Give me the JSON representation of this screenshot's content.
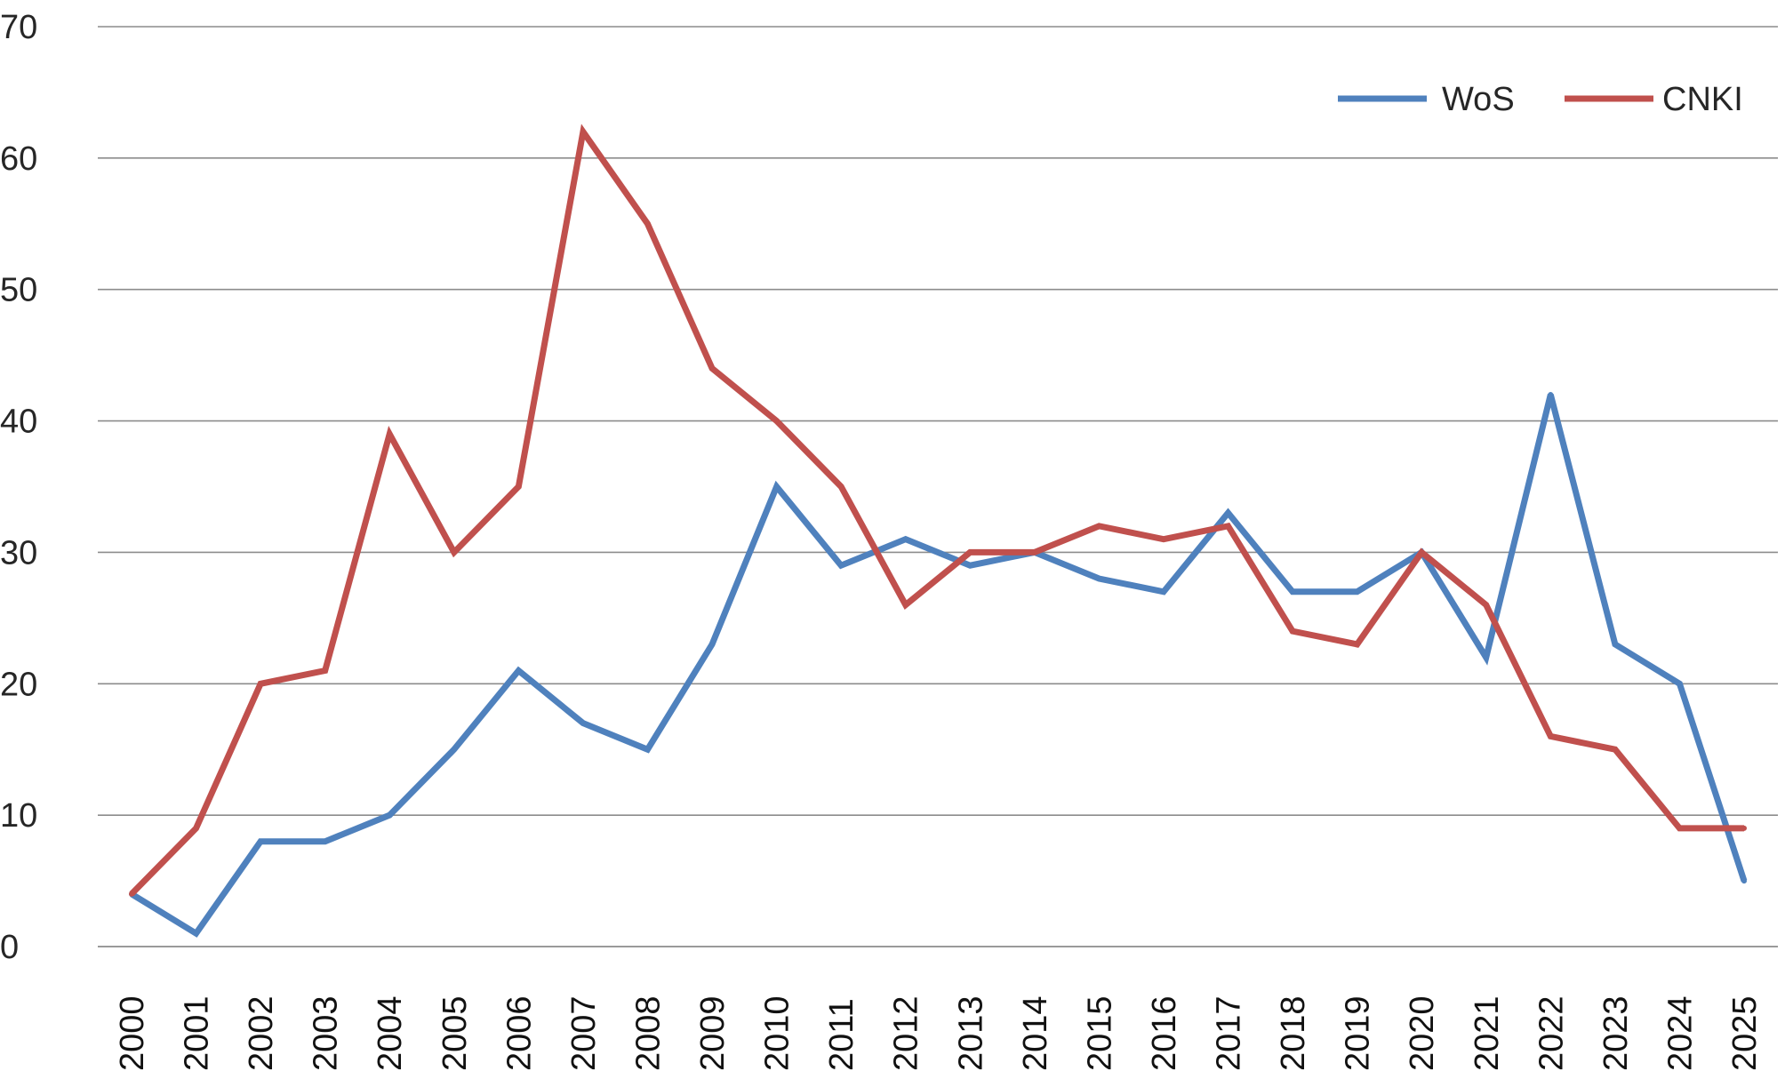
{
  "chart_data": {
    "type": "line",
    "categories": [
      "2000",
      "2001",
      "2002",
      "2003",
      "2004",
      "2005",
      "2006",
      "2007",
      "2008",
      "2009",
      "2010",
      "2011",
      "2012",
      "2013",
      "2014",
      "2015",
      "2016",
      "2017",
      "2018",
      "2019",
      "2020",
      "2021",
      "2022",
      "2023",
      "2024",
      "2025"
    ],
    "series": [
      {
        "name": "WoS",
        "color": "#4f81bd",
        "values": [
          4,
          1,
          8,
          8,
          10,
          15,
          21,
          17,
          15,
          23,
          35,
          29,
          31,
          29,
          30,
          28,
          27,
          33,
          27,
          27,
          30,
          22,
          42,
          23,
          20,
          5
        ]
      },
      {
        "name": "CNKI",
        "color": "#c0504d",
        "values": [
          4,
          9,
          20,
          21,
          39,
          30,
          35,
          62,
          55,
          44,
          40,
          35,
          26,
          30,
          30,
          32,
          31,
          32,
          24,
          23,
          30,
          26,
          16,
          15,
          9,
          9
        ]
      }
    ],
    "yticks": [
      0,
      10,
      20,
      30,
      40,
      50,
      60,
      70
    ],
    "ylim": [
      0,
      70
    ],
    "grid": true,
    "legend_position": "top-right",
    "title": "",
    "xlabel": "",
    "ylabel": ""
  }
}
